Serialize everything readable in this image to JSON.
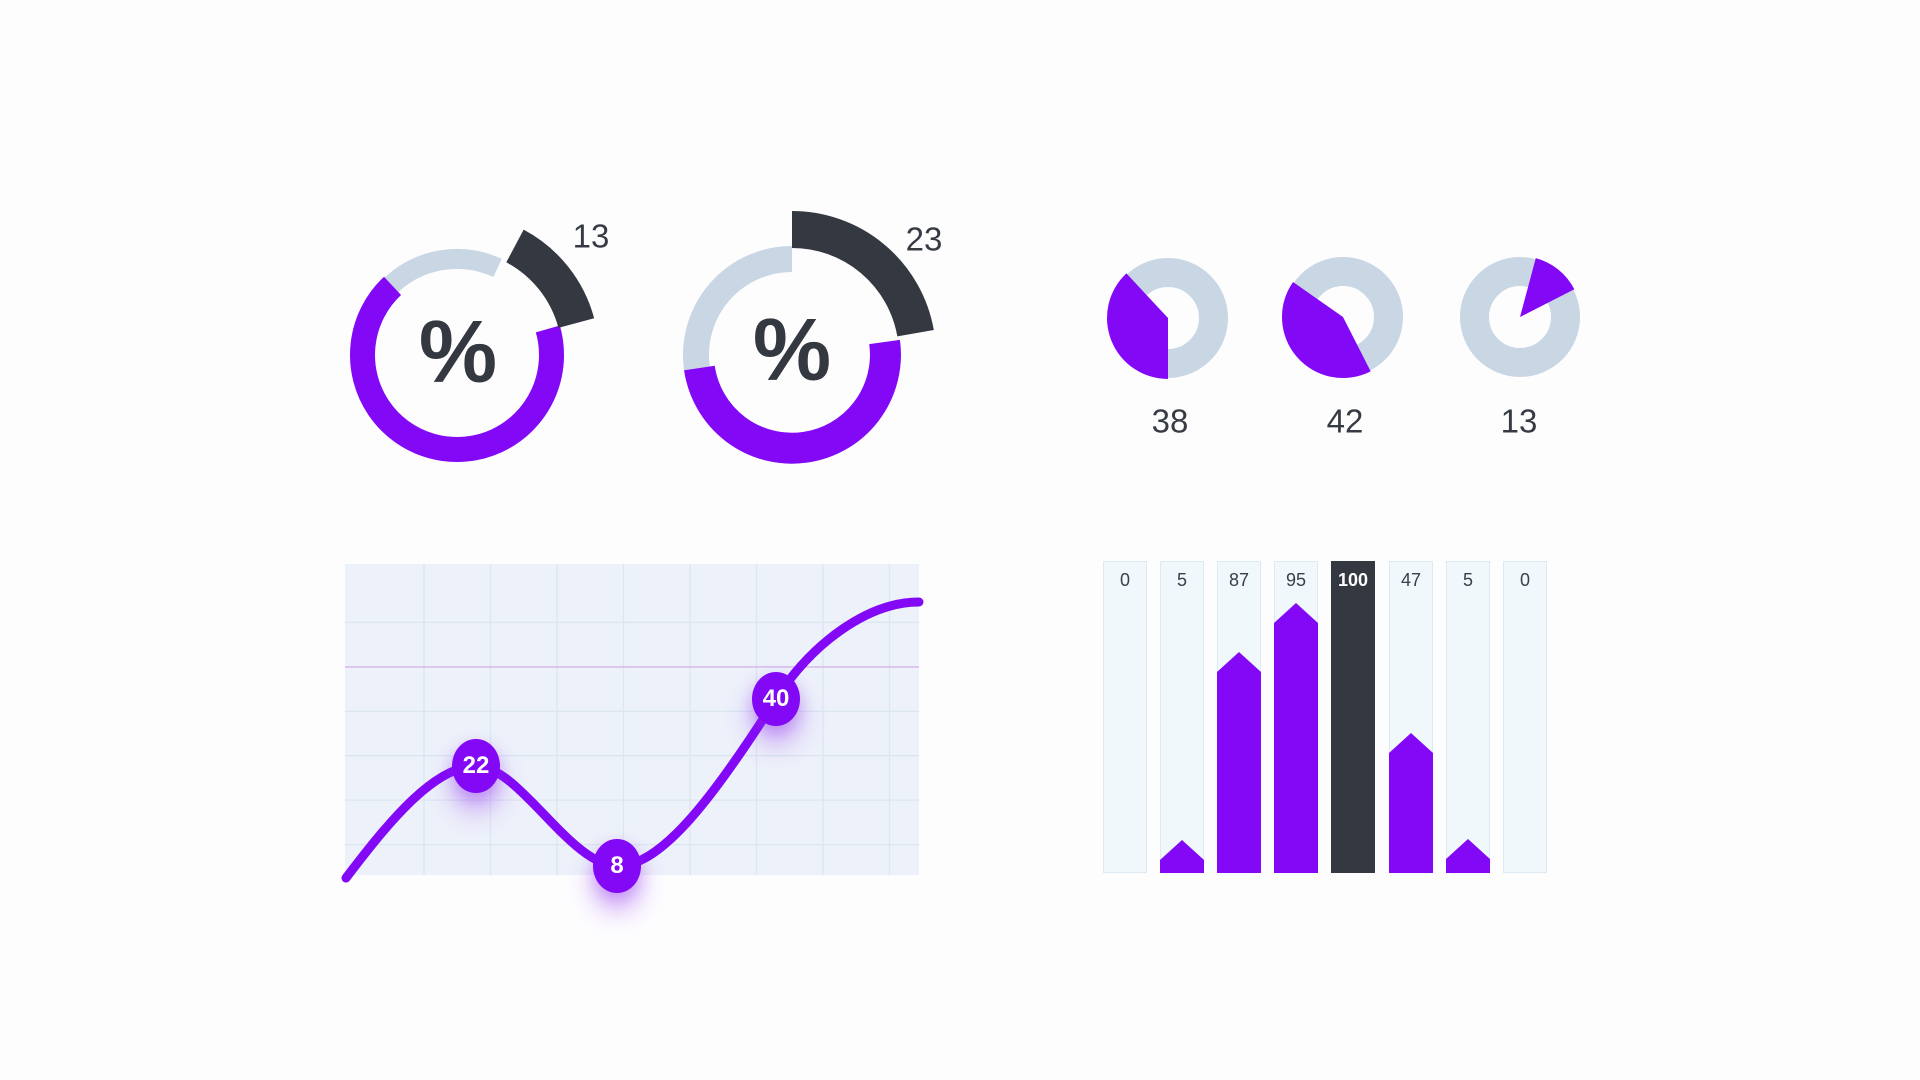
{
  "colors": {
    "purple": "#8208f6",
    "dark": "#343840",
    "gray_blue": "#c9d6e4",
    "text": "#363b43",
    "plot_bg": "#edf1fa",
    "grid_line": "#dbe6f1",
    "accent_grid_line": "#d9beec",
    "track_bg": "#f1f8fc",
    "track_border": "#dee9f2",
    "page_bg": "#fdfdfe"
  },
  "chart_data": [
    {
      "id": "gauge-1",
      "type": "donut",
      "value": 13,
      "center_label": "%",
      "legend_position": "top-right",
      "segments": [
        {
          "name": "highlight",
          "value": 13,
          "color": "#343840",
          "exploded": true
        },
        {
          "name": "filled",
          "value": 67,
          "color": "#8208f6"
        },
        {
          "name": "remainder",
          "value": 20,
          "color": "#c9d6e4"
        }
      ]
    },
    {
      "id": "gauge-2",
      "type": "donut",
      "value": 23,
      "center_label": "%",
      "legend_position": "top-right",
      "segments": [
        {
          "name": "highlight",
          "value": 23,
          "color": "#343840",
          "exploded": true
        },
        {
          "name": "filled",
          "value": 46,
          "color": "#8208f6"
        },
        {
          "name": "remainder",
          "value": 27,
          "color": "#c9d6e4"
        }
      ]
    },
    {
      "id": "mini-pie-1",
      "type": "pie",
      "value": 38,
      "slice_color": "#8208f6",
      "ring_color": "#c9d6e4"
    },
    {
      "id": "mini-pie-2",
      "type": "pie",
      "value": 42,
      "slice_color": "#8208f6",
      "ring_color": "#c9d6e4"
    },
    {
      "id": "mini-pie-3",
      "type": "pie",
      "value": 13,
      "slice_color": "#8208f6",
      "ring_color": "#c9d6e4"
    },
    {
      "id": "line-chart",
      "type": "line",
      "grid": true,
      "line_color": "#8208f6",
      "points": [
        {
          "label": "22",
          "value": 22
        },
        {
          "label": "8",
          "value": 8
        },
        {
          "label": "40",
          "value": 40
        }
      ]
    },
    {
      "id": "bar-chart",
      "type": "bar",
      "values": [
        0,
        5,
        87,
        95,
        100,
        47,
        5,
        0
      ],
      "highlight_index": 4,
      "bar_color": "#8208f6",
      "highlight_color": "#343840",
      "ylim": [
        0,
        100
      ]
    }
  ]
}
